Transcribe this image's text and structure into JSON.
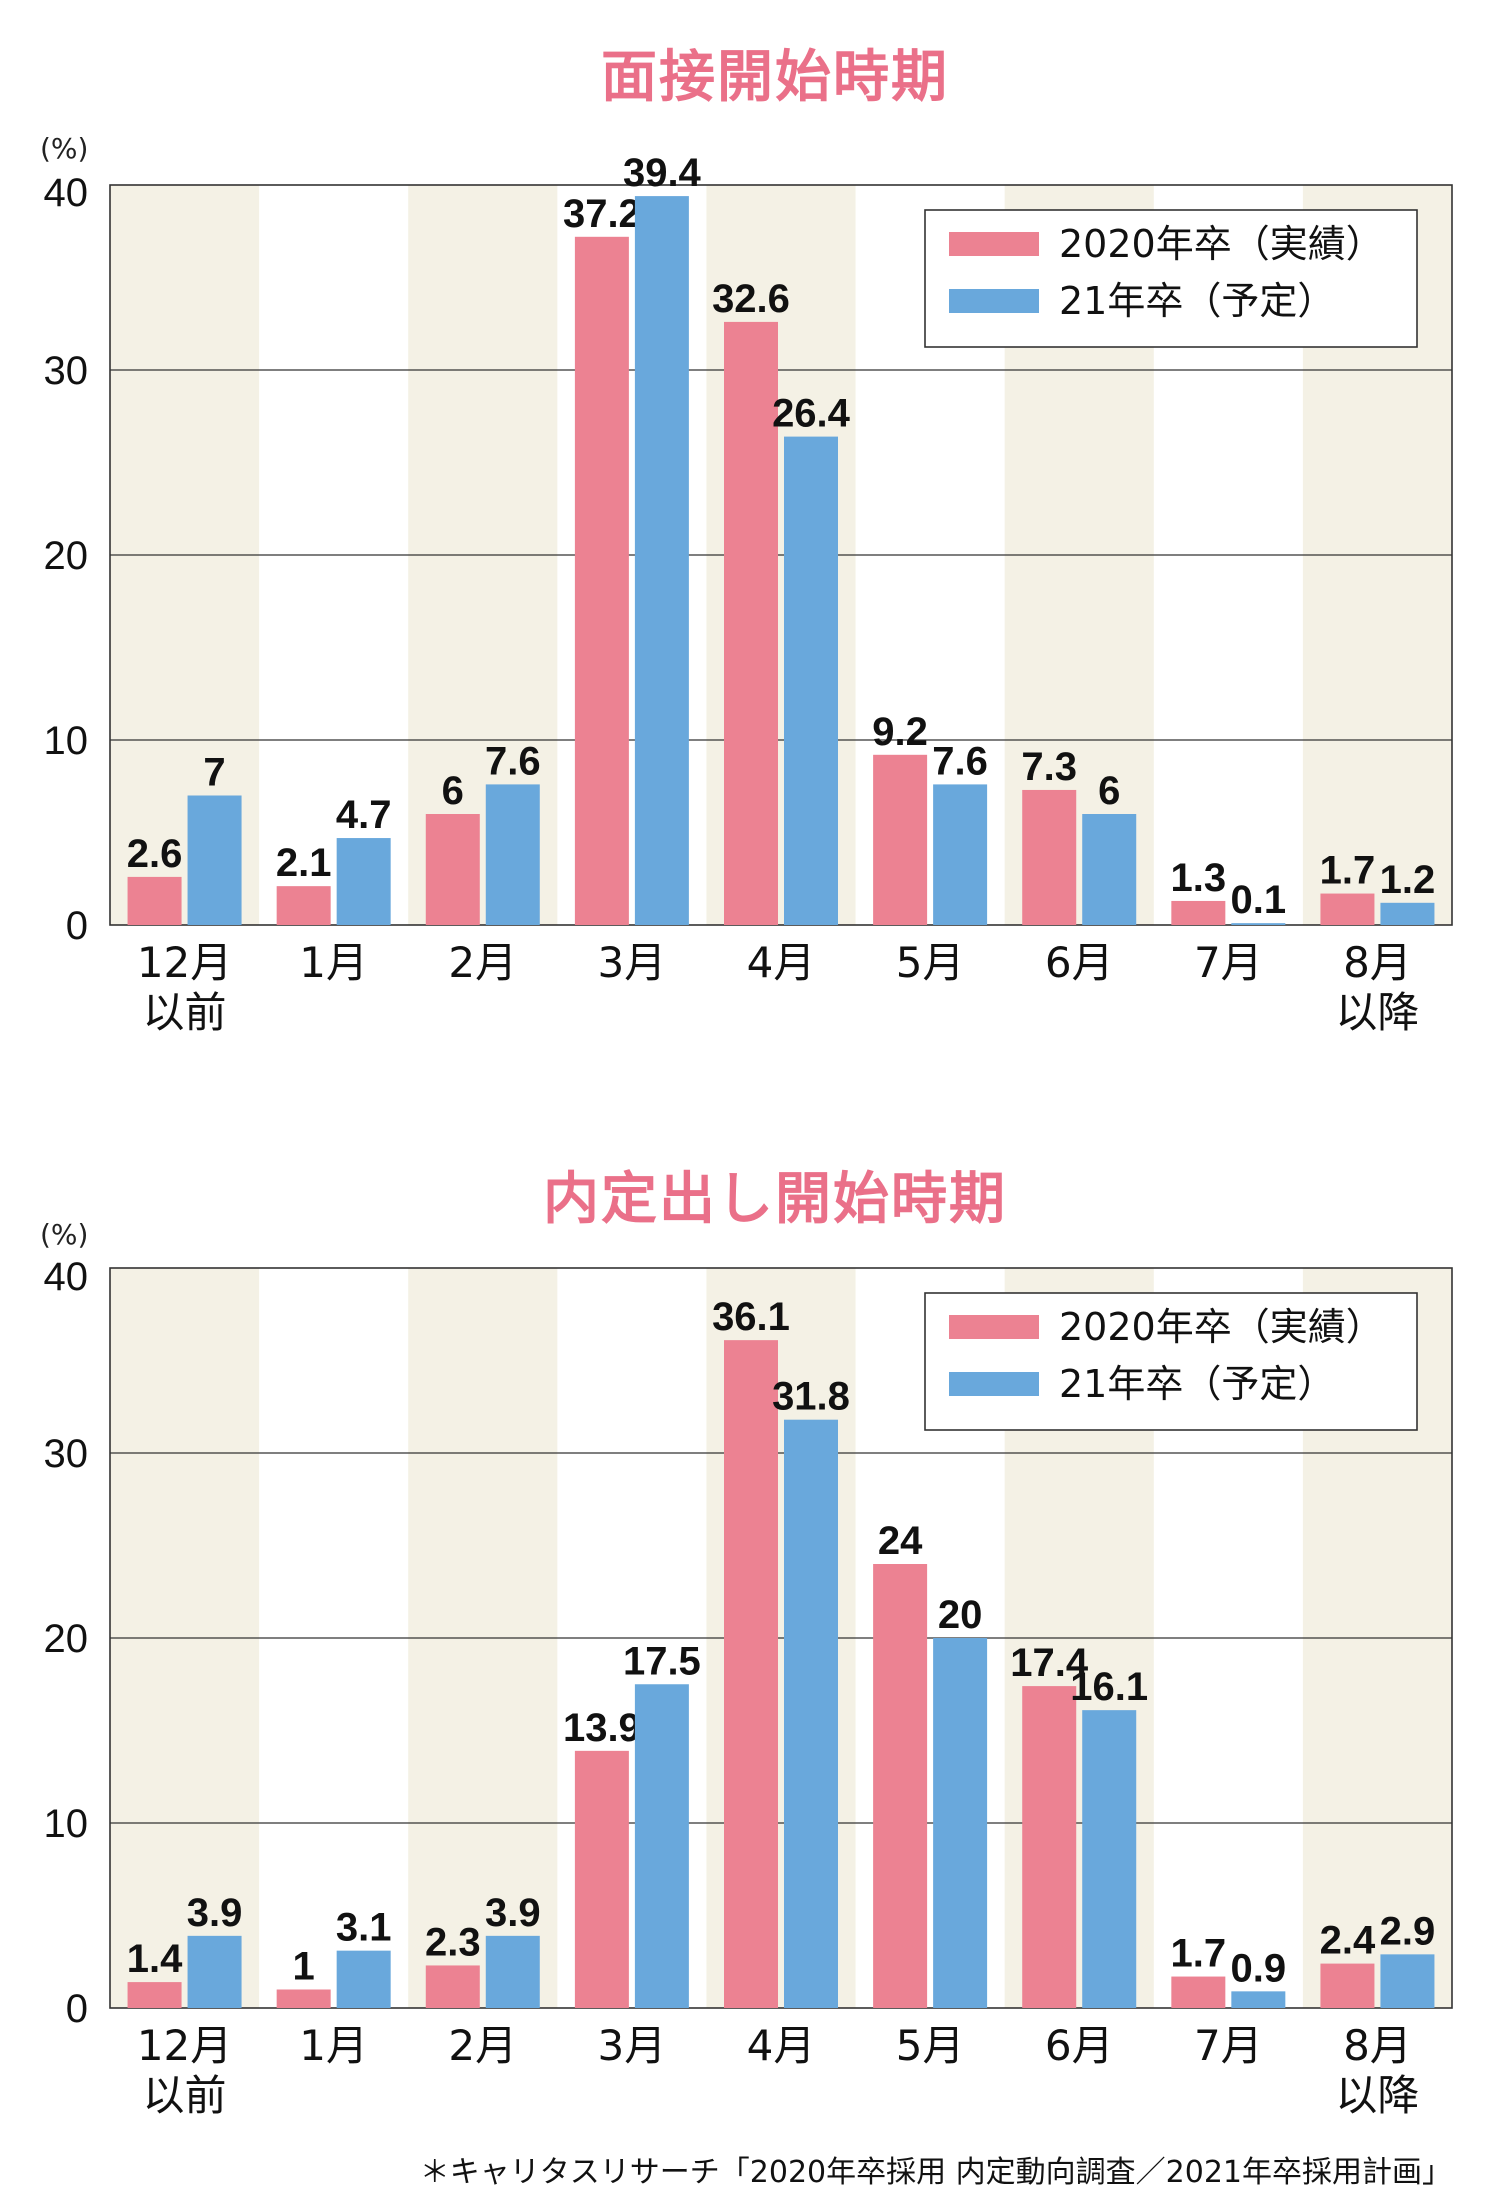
{
  "colors": {
    "series_2020": "#ec8292",
    "series_2021": "#69a8dc",
    "band": "#f4f1e5",
    "title": "#ea7089"
  },
  "chart_data": [
    {
      "type": "bar",
      "title": "面接開始時期",
      "ylabel": "(%)",
      "ylim": [
        0,
        40
      ],
      "yticks": [
        0,
        10,
        20,
        30,
        40
      ],
      "categories": [
        [
          "12月",
          "以前"
        ],
        [
          "1月"
        ],
        [
          "2月"
        ],
        [
          "3月"
        ],
        [
          "4月"
        ],
        [
          "5月"
        ],
        [
          "6月"
        ],
        [
          "7月"
        ],
        [
          "8月",
          "以降"
        ]
      ],
      "series": [
        {
          "name": "2020年卒（実績）",
          "values": [
            2.6,
            2.1,
            6,
            37.2,
            32.6,
            9.2,
            7.3,
            1.3,
            1.7
          ]
        },
        {
          "name": "21年卒（予定）",
          "values": [
            7,
            4.7,
            7.6,
            39.4,
            26.4,
            7.6,
            6,
            0.1,
            1.2
          ]
        }
      ],
      "legend": "top-right",
      "grid": true
    },
    {
      "type": "bar",
      "title": "内定出し開始時期",
      "ylabel": "(%)",
      "ylim": [
        0,
        40
      ],
      "yticks": [
        0,
        10,
        20,
        30,
        40
      ],
      "categories": [
        [
          "12月",
          "以前"
        ],
        [
          "1月"
        ],
        [
          "2月"
        ],
        [
          "3月"
        ],
        [
          "4月"
        ],
        [
          "5月"
        ],
        [
          "6月"
        ],
        [
          "7月"
        ],
        [
          "8月",
          "以降"
        ]
      ],
      "series": [
        {
          "name": "2020年卒（実績）",
          "values": [
            1.4,
            1,
            2.3,
            13.9,
            36.1,
            24,
            17.4,
            1.7,
            2.4
          ]
        },
        {
          "name": "21年卒（予定）",
          "values": [
            3.9,
            3.1,
            3.9,
            17.5,
            31.8,
            20,
            16.1,
            0.9,
            2.9
          ]
        }
      ],
      "legend": "top-right",
      "grid": true
    }
  ],
  "footnote": "＊キャリタスリサーチ「2020年卒採用 内定動向調査／2021年卒採用計画」"
}
